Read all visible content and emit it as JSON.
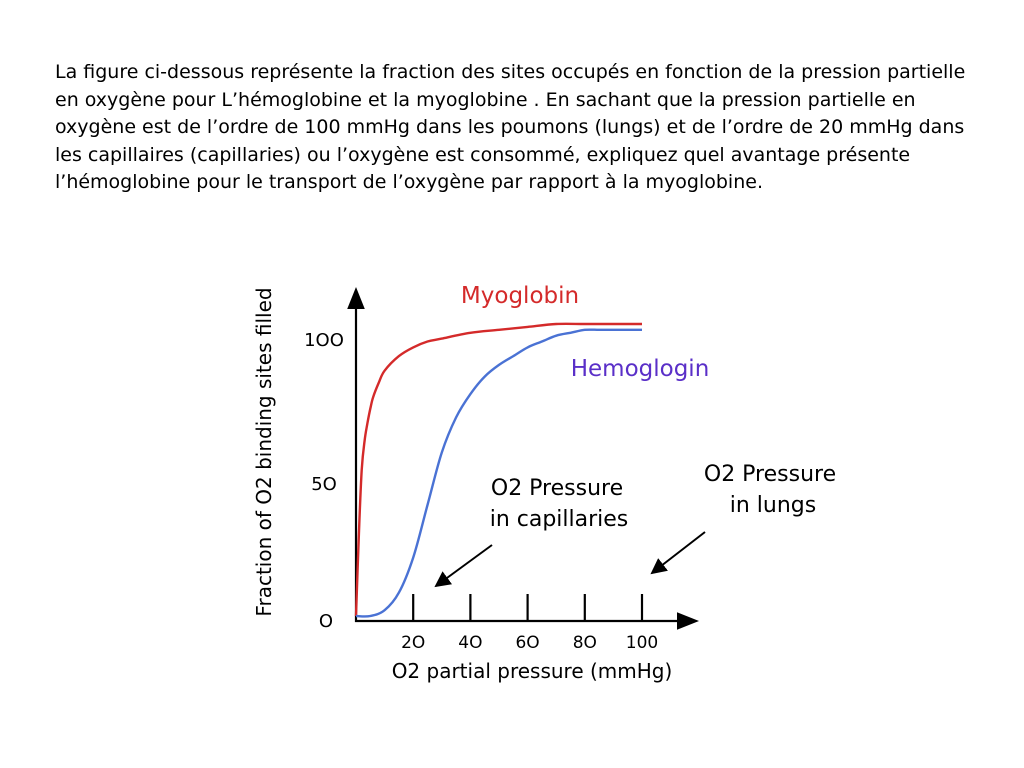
{
  "question": {
    "text": "La figure ci-dessous représente la fraction des sites occupés en fonction de la pression partielle en oxygène pour L’hémoglobine et la myoglobine . En sachant que la pression partielle en oxygène est de l’ordre de 100 mmHg dans les poumons (lungs) et de l’ordre de 20 mmHg dans les capillaires (capillaries) ou l’oxygène est consommé, expliquez quel avantage présente l’hémoglobine pour le transport de  l’oxygène par rapport à la myoglobine."
  },
  "chart_data": {
    "type": "line",
    "title": "",
    "xlabel": "O2 partial pressure (mmHg)",
    "ylabel": "Fraction of O2 binding sites filled",
    "xlim": [
      0,
      110
    ],
    "ylim": [
      0,
      100
    ],
    "x_ticks": [
      20,
      40,
      60,
      80,
      100
    ],
    "x_tick_labels": [
      "2O",
      "4O",
      "6O",
      "8O",
      "100"
    ],
    "y_ticks": [
      0,
      50,
      100
    ],
    "y_tick_labels": [
      "O",
      "5O",
      "1OO"
    ],
    "grid": false,
    "series": [
      {
        "name": "Myoglobin",
        "color": "#d42a2a",
        "x": [
          0,
          1,
          2,
          3,
          4,
          5,
          6,
          8,
          10,
          15,
          20,
          25,
          30,
          40,
          50,
          60,
          70,
          80,
          90,
          100
        ],
        "y": [
          0,
          28,
          50,
          60,
          66,
          71,
          75,
          80,
          84,
          89,
          92,
          94,
          95,
          97,
          98,
          99,
          100,
          100,
          100,
          100
        ]
      },
      {
        "name": "Hemoglogin",
        "color": "#4a72d4",
        "x": [
          0,
          5,
          10,
          15,
          20,
          25,
          30,
          35,
          40,
          45,
          50,
          55,
          60,
          65,
          70,
          75,
          80,
          85,
          90,
          100
        ],
        "y": [
          0,
          0,
          2,
          8,
          20,
          38,
          56,
          68,
          76,
          82,
          86,
          89,
          92,
          94,
          96,
          97,
          98,
          98,
          98,
          98
        ]
      }
    ],
    "annotations": [
      {
        "id": "capillaries",
        "lines": [
          "O2 Pressure",
          "in capillaries"
        ],
        "points_to_x": 20
      },
      {
        "id": "lungs",
        "lines": [
          "O2 Pressure",
          "in lungs"
        ],
        "points_to_x": 100
      }
    ]
  }
}
